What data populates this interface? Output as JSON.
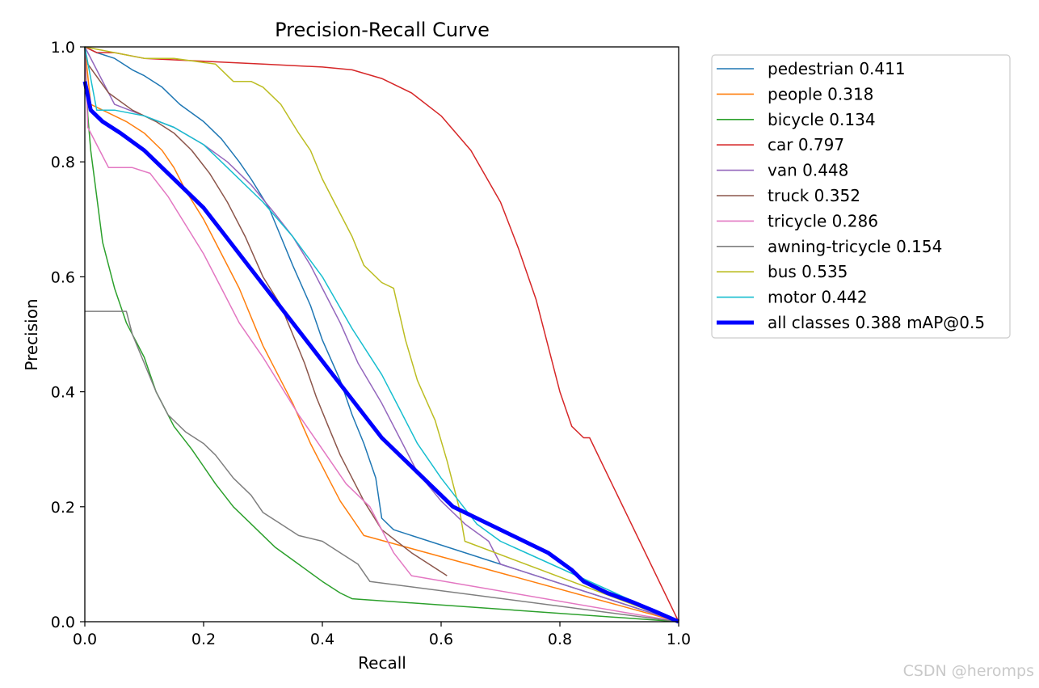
{
  "watermark": "CSDN @heromps",
  "chart_data": {
    "type": "line",
    "title": "Precision-Recall Curve",
    "xlabel": "Recall",
    "ylabel": "Precision",
    "xlim": [
      0,
      1
    ],
    "ylim": [
      0,
      1
    ],
    "xticks": [
      "0.0",
      "0.2",
      "0.4",
      "0.6",
      "0.8",
      "1.0"
    ],
    "yticks": [
      "0.0",
      "0.2",
      "0.4",
      "0.6",
      "0.8",
      "1.0"
    ],
    "grid": false,
    "legend_position": "outside-right-top",
    "series": [
      {
        "name": "pedestrian 0.411",
        "color": "#1f77b4",
        "x": [
          0,
          0.02,
          0.05,
          0.08,
          0.1,
          0.13,
          0.16,
          0.2,
          0.23,
          0.26,
          0.28,
          0.31,
          0.33,
          0.35,
          0.38,
          0.4,
          0.43,
          0.45,
          0.47,
          0.49,
          0.5,
          0.52,
          1.0
        ],
        "y": [
          1.0,
          0.99,
          0.98,
          0.96,
          0.95,
          0.93,
          0.9,
          0.87,
          0.84,
          0.8,
          0.77,
          0.72,
          0.67,
          0.62,
          0.55,
          0.49,
          0.42,
          0.36,
          0.31,
          0.25,
          0.18,
          0.16,
          0.0
        ]
      },
      {
        "name": "people 0.318",
        "color": "#ff7f0e",
        "x": [
          0,
          0.01,
          0.03,
          0.07,
          0.1,
          0.13,
          0.15,
          0.17,
          0.2,
          0.23,
          0.26,
          0.28,
          0.3,
          0.32,
          0.35,
          0.38,
          0.41,
          0.43,
          0.45,
          0.47,
          1.0
        ],
        "y": [
          1.0,
          0.9,
          0.89,
          0.87,
          0.85,
          0.82,
          0.79,
          0.75,
          0.7,
          0.64,
          0.58,
          0.53,
          0.48,
          0.44,
          0.38,
          0.31,
          0.25,
          0.21,
          0.18,
          0.15,
          0.0
        ]
      },
      {
        "name": "bicycle 0.134",
        "color": "#2ca02c",
        "x": [
          0,
          0.005,
          0.01,
          0.02,
          0.03,
          0.05,
          0.07,
          0.1,
          0.12,
          0.15,
          0.18,
          0.2,
          0.22,
          0.25,
          0.28,
          0.32,
          0.36,
          0.4,
          0.43,
          0.45,
          1.0
        ],
        "y": [
          1.0,
          0.88,
          0.82,
          0.74,
          0.66,
          0.58,
          0.52,
          0.46,
          0.4,
          0.34,
          0.3,
          0.27,
          0.24,
          0.2,
          0.17,
          0.13,
          0.1,
          0.07,
          0.05,
          0.04,
          0.0
        ]
      },
      {
        "name": "car 0.797",
        "color": "#d62728",
        "x": [
          0,
          0.02,
          0.05,
          0.1,
          0.2,
          0.3,
          0.4,
          0.45,
          0.5,
          0.55,
          0.6,
          0.65,
          0.7,
          0.73,
          0.76,
          0.78,
          0.8,
          0.82,
          0.84,
          0.85,
          1.0
        ],
        "y": [
          1.0,
          0.99,
          0.99,
          0.98,
          0.975,
          0.97,
          0.965,
          0.96,
          0.945,
          0.92,
          0.88,
          0.82,
          0.73,
          0.65,
          0.56,
          0.48,
          0.4,
          0.34,
          0.32,
          0.32,
          0.0
        ]
      },
      {
        "name": "van 0.448",
        "color": "#9467bd",
        "x": [
          0,
          0.05,
          0.1,
          0.15,
          0.2,
          0.24,
          0.28,
          0.32,
          0.35,
          0.38,
          0.4,
          0.43,
          0.46,
          0.5,
          0.53,
          0.56,
          0.6,
          0.64,
          0.68,
          0.7,
          1.0
        ],
        "y": [
          1.0,
          0.9,
          0.88,
          0.86,
          0.83,
          0.8,
          0.76,
          0.71,
          0.67,
          0.62,
          0.58,
          0.52,
          0.45,
          0.38,
          0.32,
          0.26,
          0.21,
          0.17,
          0.14,
          0.1,
          0.0
        ]
      },
      {
        "name": "truck 0.352",
        "color": "#8c564b",
        "x": [
          0,
          0.005,
          0.04,
          0.08,
          0.12,
          0.15,
          0.18,
          0.21,
          0.24,
          0.27,
          0.3,
          0.33,
          0.35,
          0.37,
          0.39,
          0.41,
          0.43,
          0.45,
          0.47,
          0.5,
          0.55,
          0.61
        ],
        "y": [
          1.0,
          0.97,
          0.92,
          0.89,
          0.87,
          0.85,
          0.82,
          0.78,
          0.73,
          0.67,
          0.6,
          0.55,
          0.5,
          0.45,
          0.39,
          0.34,
          0.29,
          0.25,
          0.21,
          0.16,
          0.12,
          0.08
        ]
      },
      {
        "name": "tricycle 0.286",
        "color": "#e377c2",
        "x": [
          0,
          0.005,
          0.02,
          0.04,
          0.08,
          0.11,
          0.14,
          0.17,
          0.2,
          0.23,
          0.26,
          0.3,
          0.33,
          0.36,
          0.4,
          0.44,
          0.48,
          0.52,
          0.55,
          1.0
        ],
        "y": [
          1.0,
          0.86,
          0.83,
          0.79,
          0.79,
          0.78,
          0.74,
          0.69,
          0.64,
          0.58,
          0.52,
          0.46,
          0.41,
          0.36,
          0.3,
          0.24,
          0.2,
          0.12,
          0.08,
          0.0
        ]
      },
      {
        "name": "awning-tricycle 0.154",
        "color": "#7f7f7f",
        "x": [
          0,
          0.07,
          0.08,
          0.1,
          0.12,
          0.14,
          0.17,
          0.2,
          0.22,
          0.25,
          0.28,
          0.3,
          0.33,
          0.36,
          0.4,
          0.43,
          0.46,
          0.48,
          1.0
        ],
        "y": [
          0.54,
          0.54,
          0.5,
          0.45,
          0.4,
          0.36,
          0.33,
          0.31,
          0.29,
          0.25,
          0.22,
          0.19,
          0.17,
          0.15,
          0.14,
          0.12,
          0.1,
          0.07,
          0.0
        ]
      },
      {
        "name": "bus 0.535",
        "color": "#bcbd22",
        "x": [
          0,
          0.05,
          0.1,
          0.15,
          0.22,
          0.25,
          0.28,
          0.3,
          0.33,
          0.36,
          0.38,
          0.4,
          0.42,
          0.45,
          0.47,
          0.5,
          0.52,
          0.54,
          0.56,
          0.59,
          0.61,
          0.63,
          0.64,
          1.0
        ],
        "y": [
          1.0,
          0.99,
          0.98,
          0.98,
          0.97,
          0.94,
          0.94,
          0.93,
          0.9,
          0.85,
          0.82,
          0.77,
          0.73,
          0.67,
          0.62,
          0.59,
          0.58,
          0.49,
          0.42,
          0.35,
          0.28,
          0.2,
          0.14,
          0.0
        ]
      },
      {
        "name": "motor 0.442",
        "color": "#17becf",
        "x": [
          0,
          0.02,
          0.05,
          0.1,
          0.15,
          0.2,
          0.25,
          0.3,
          0.35,
          0.4,
          0.45,
          0.5,
          0.53,
          0.56,
          0.6,
          0.63,
          0.66,
          0.7,
          1.0
        ],
        "y": [
          1.0,
          0.89,
          0.89,
          0.88,
          0.86,
          0.83,
          0.78,
          0.73,
          0.67,
          0.6,
          0.51,
          0.43,
          0.37,
          0.31,
          0.25,
          0.21,
          0.17,
          0.14,
          0.0
        ]
      },
      {
        "name": "all classes 0.388 mAP@0.5",
        "color": "#0000ff",
        "bold": true,
        "x": [
          0,
          0.01,
          0.03,
          0.06,
          0.1,
          0.13,
          0.16,
          0.2,
          0.23,
          0.26,
          0.29,
          0.32,
          0.35,
          0.38,
          0.41,
          0.44,
          0.47,
          0.5,
          0.54,
          0.58,
          0.62,
          0.66,
          0.7,
          0.74,
          0.78,
          0.82,
          0.84,
          0.88,
          0.92,
          0.96,
          1.0
        ],
        "y": [
          0.94,
          0.89,
          0.87,
          0.85,
          0.82,
          0.79,
          0.76,
          0.72,
          0.68,
          0.64,
          0.6,
          0.56,
          0.52,
          0.48,
          0.44,
          0.4,
          0.36,
          0.32,
          0.28,
          0.24,
          0.2,
          0.18,
          0.16,
          0.14,
          0.12,
          0.09,
          0.07,
          0.05,
          0.035,
          0.018,
          0.0
        ]
      }
    ]
  }
}
